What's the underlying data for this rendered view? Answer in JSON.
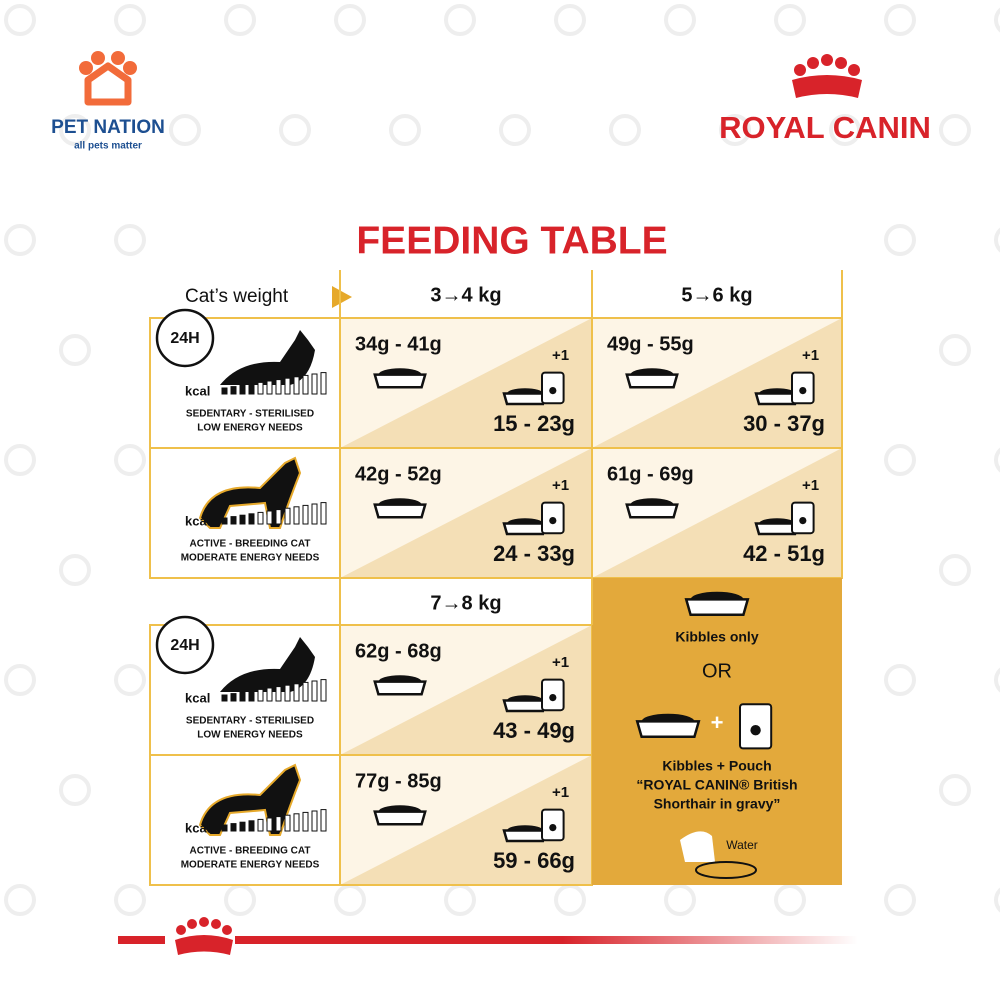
{
  "brand": {
    "store_name": "PET NATION",
    "store_tagline": "all pets matter",
    "logo": "ROYAL CANIN"
  },
  "title": "FEEDING TABLE",
  "weight_label": "Cat’s weight",
  "sections": [
    {
      "weights": [
        "3→4 kg",
        "5→6 kg"
      ],
      "rows": [
        {
          "profile": {
            "badge": "24H",
            "kcal": "kcal",
            "line1": "SEDENTARY - STERILISED",
            "line2": "LOW ENERGY NEEDS"
          },
          "cells": [
            {
              "kibbles": "34g - 41g",
              "pouch": "+1",
              "mixed": "15 - 23g"
            },
            {
              "kibbles": "49g - 55g",
              "pouch": "+1",
              "mixed": "30 - 37g"
            }
          ]
        },
        {
          "profile": {
            "kcal": "kcal",
            "line1": "ACTIVE - BREEDING CAT",
            "line2": "MODERATE ENERGY NEEDS"
          },
          "cells": [
            {
              "kibbles": "42g - 52g",
              "pouch": "+1",
              "mixed": "24 - 33g"
            },
            {
              "kibbles": "61g - 69g",
              "pouch": "+1",
              "mixed": "42 - 51g"
            }
          ]
        }
      ]
    },
    {
      "weights": [
        "7→8 kg"
      ],
      "rows": [
        {
          "profile": {
            "badge": "24H",
            "kcal": "kcal",
            "line1": "SEDENTARY - STERILISED",
            "line2": "LOW ENERGY NEEDS"
          },
          "cells": [
            {
              "kibbles": "62g - 68g",
              "pouch": "+1",
              "mixed": "43 - 49g"
            }
          ]
        },
        {
          "profile": {
            "kcal": "kcal",
            "line1": "ACTIVE - BREEDING CAT",
            "line2": "MODERATE ENERGY NEEDS"
          },
          "cells": [
            {
              "kibbles": "77g - 85g",
              "pouch": "+1",
              "mixed": "59 - 66g"
            }
          ]
        }
      ]
    }
  ],
  "legend": {
    "kibbles_only": "Kibbles only",
    "or": "OR",
    "plus": "+",
    "combo_lines": [
      "Kibbles + Pouch",
      "“ROYAL CANIN® British",
      "Shorthair in gravy”"
    ],
    "water": "Water"
  }
}
